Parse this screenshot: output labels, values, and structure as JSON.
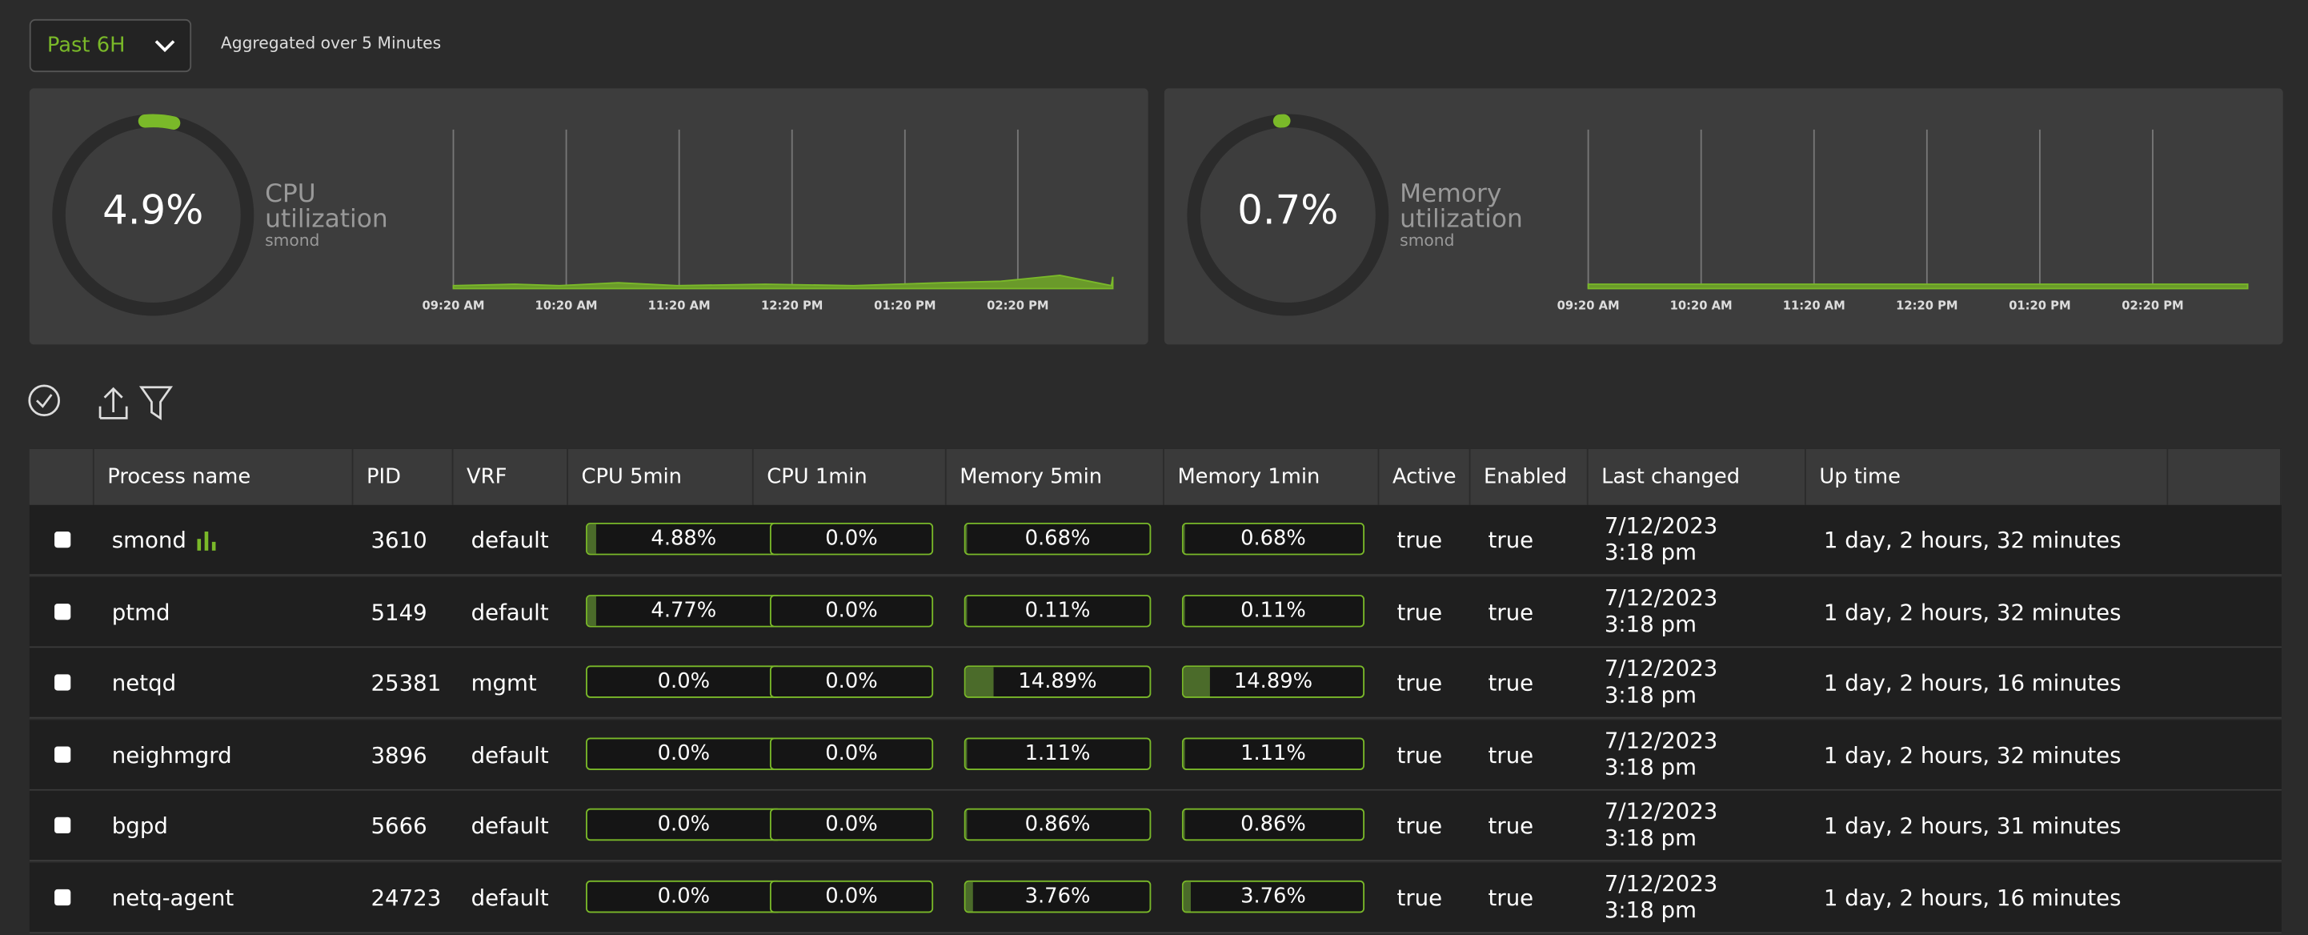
{
  "toolbar": {
    "time_range": "Past 6H",
    "aggregation": "Aggregated over 5 Minutes"
  },
  "cards": [
    {
      "value": 4.9,
      "value_label": "4.9%",
      "title": "CPU utilization",
      "subtitle": "smond",
      "time_ticks": [
        "09:20 AM",
        "10:20 AM",
        "11:20 AM",
        "12:20 PM",
        "01:20 PM",
        "02:20 PM"
      ]
    },
    {
      "value": 0.7,
      "value_label": "0.7%",
      "title": "Memory utilization",
      "subtitle": "smond",
      "time_ticks": [
        "09:20 AM",
        "10:20 AM",
        "11:20 AM",
        "12:20 PM",
        "01:20 PM",
        "02:20 PM"
      ]
    }
  ],
  "table": {
    "headers": [
      "Process name",
      "PID",
      "VRF",
      "CPU 5min",
      "CPU 1min",
      "Memory 5min",
      "Memory 1min",
      "Active",
      "Enabled",
      "Last changed",
      "Up time"
    ],
    "rows": [
      [
        "smond",
        3610,
        "default",
        {
          "value": 4.88,
          "label": "4.88%"
        },
        {
          "value": 0.0,
          "label": "0.0%"
        },
        {
          "value": 0.68,
          "label": "0.68%"
        },
        {
          "value": 0.68,
          "label": "0.68%"
        },
        "true",
        "true",
        "7/12/2023 3:18 pm",
        "1 day, 2 hours, 32 minutes"
      ],
      [
        "ptmd",
        5149,
        "default",
        {
          "value": 4.77,
          "label": "4.77%"
        },
        {
          "value": 0.0,
          "label": "0.0%"
        },
        {
          "value": 0.11,
          "label": "0.11%"
        },
        {
          "value": 0.11,
          "label": "0.11%"
        },
        "true",
        "true",
        "7/12/2023 3:18 pm",
        "1 day, 2 hours, 32 minutes"
      ],
      [
        "netqd",
        25381,
        "mgmt",
        {
          "value": 0.0,
          "label": "0.0%"
        },
        {
          "value": 0.0,
          "label": "0.0%"
        },
        {
          "value": 14.89,
          "label": "14.89%"
        },
        {
          "value": 14.89,
          "label": "14.89%"
        },
        "true",
        "true",
        "7/12/2023 3:18 pm",
        "1 day, 2 hours, 16 minutes"
      ],
      [
        "neighmgrd",
        3896,
        "default",
        {
          "value": 0.0,
          "label": "0.0%"
        },
        {
          "value": 0.0,
          "label": "0.0%"
        },
        {
          "value": 1.11,
          "label": "1.11%"
        },
        {
          "value": 1.11,
          "label": "1.11%"
        },
        "true",
        "true",
        "7/12/2023 3:18 pm",
        "1 day, 2 hours, 32 minutes"
      ],
      [
        "bgpd",
        5666,
        "default",
        {
          "value": 0.0,
          "label": "0.0%"
        },
        {
          "value": 0.0,
          "label": "0.0%"
        },
        {
          "value": 0.86,
          "label": "0.86%"
        },
        {
          "value": 0.86,
          "label": "0.86%"
        },
        "true",
        "true",
        "7/12/2023 3:18 pm",
        "1 day, 2 hours, 31 minutes"
      ],
      [
        "netq-agent",
        24723,
        "default",
        {
          "value": 0.0,
          "label": "0.0%"
        },
        {
          "value": 0.0,
          "label": "0.0%"
        },
        {
          "value": 3.76,
          "label": "3.76%"
        },
        {
          "value": 3.76,
          "label": "3.76%"
        },
        "true",
        "true",
        "7/12/2023 3:18 pm",
        "1 day, 2 hours, 16 minutes"
      ]
    ]
  }
}
